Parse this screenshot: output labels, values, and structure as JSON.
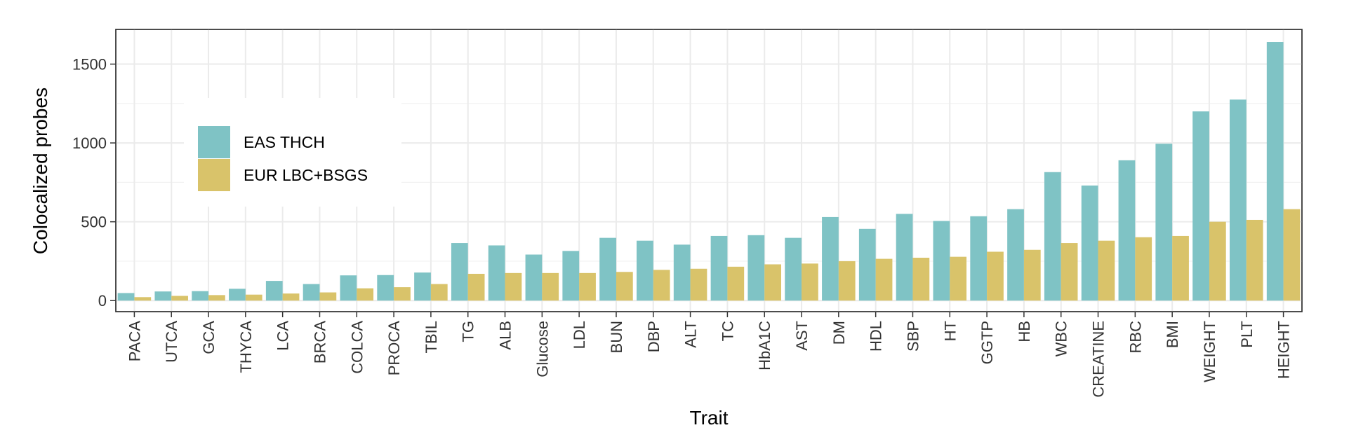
{
  "chart_data": {
    "type": "bar",
    "xlabel": "Trait",
    "ylabel": "Colocalized probes",
    "ylim": [
      -70,
      1720
    ],
    "yticks": [
      0,
      500,
      1000,
      1500
    ],
    "grid": true,
    "legend": "top-left",
    "categories": [
      "PACA",
      "UTCA",
      "GCA",
      "THYCA",
      "LCA",
      "BRCA",
      "COLCA",
      "PROCA",
      "TBIL",
      "TG",
      "ALB",
      "Glucose",
      "LDL",
      "BUN",
      "DBP",
      "ALT",
      "TC",
      "HbA1C",
      "AST",
      "DM",
      "HDL",
      "SBP",
      "HT",
      "GGTP",
      "HB",
      "WBC",
      "CREATINE",
      "RBC",
      "BMI",
      "WEIGHT",
      "PLT",
      "HEIGHT"
    ],
    "series": [
      {
        "name": "EAS THCH",
        "color": "#7fc3c5",
        "values": [
          48,
          58,
          60,
          75,
          125,
          105,
          160,
          162,
          178,
          365,
          350,
          292,
          315,
          398,
          380,
          355,
          410,
          415,
          398,
          530,
          455,
          550,
          505,
          535,
          580,
          815,
          730,
          890,
          995,
          1200,
          1275,
          1640
        ]
      },
      {
        "name": "EUR LBC+BSGS",
        "color": "#d9c36a",
        "values": [
          22,
          30,
          35,
          38,
          45,
          52,
          78,
          85,
          105,
          170,
          175,
          175,
          175,
          182,
          195,
          202,
          215,
          230,
          235,
          250,
          265,
          272,
          278,
          310,
          322,
          365,
          380,
          402,
          410,
          500,
          512,
          580
        ]
      }
    ]
  }
}
